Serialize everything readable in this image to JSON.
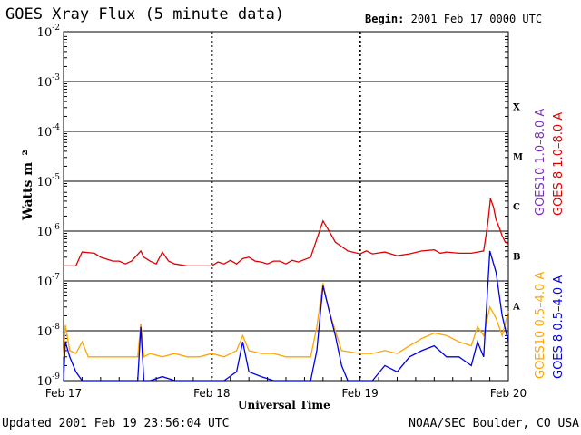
{
  "header": {
    "title": "GOES Xray Flux (5 minute data)",
    "begin_label": "Begin:",
    "begin_value": "2001 Feb 17 0000 UTC"
  },
  "footer": {
    "updated": "Updated 2001 Feb 19 23:56:04 UTC",
    "org": "NOAA/SEC Boulder, CO USA"
  },
  "chart_data": {
    "type": "line",
    "ylabel": "Watts m⁻²",
    "xlabel": "Universal Time",
    "yscale": "log",
    "ylim": [
      1e-09,
      0.01
    ],
    "xlim": [
      0,
      72
    ],
    "y_ticks": [
      {
        "exp": "-2",
        "value": 0.01
      },
      {
        "exp": "-3",
        "value": 0.001
      },
      {
        "exp": "-4",
        "value": 0.0001
      },
      {
        "exp": "-5",
        "value": 1e-05
      },
      {
        "exp": "-6",
        "value": 1e-06
      },
      {
        "exp": "-7",
        "value": 1e-07
      },
      {
        "exp": "-8",
        "value": 1e-08
      },
      {
        "exp": "-9",
        "value": 1e-09
      }
    ],
    "x_ticks": [
      {
        "label": "Feb 17",
        "hour": 0
      },
      {
        "label": "Feb 18",
        "hour": 24
      },
      {
        "label": "Feb 19",
        "hour": 48
      },
      {
        "label": "Feb 20",
        "hour": 72
      }
    ],
    "flare_classes": [
      {
        "label": "X",
        "value": 0.0001
      },
      {
        "label": "M",
        "value": 1e-05
      },
      {
        "label": "C",
        "value": 1e-06
      },
      {
        "label": "B",
        "value": 1e-07
      },
      {
        "label": "A",
        "value": 1e-08
      }
    ],
    "series": [
      {
        "name": "GOES10 1.0–8.0 A",
        "color": "#7b2fbf",
        "points": []
      },
      {
        "name": "GOES 8 1.0–8.0 A",
        "color": "#e00000",
        "points": [
          [
            0,
            2e-07
          ],
          [
            2,
            2e-07
          ],
          [
            3,
            3.8e-07
          ],
          [
            5,
            3.6e-07
          ],
          [
            6,
            3e-07
          ],
          [
            8,
            2.5e-07
          ],
          [
            9,
            2.5e-07
          ],
          [
            10,
            2.2e-07
          ],
          [
            11,
            2.5e-07
          ],
          [
            12.5,
            4e-07
          ],
          [
            13,
            3e-07
          ],
          [
            14,
            2.5e-07
          ],
          [
            15,
            2.2e-07
          ],
          [
            16,
            3.8e-07
          ],
          [
            17,
            2.5e-07
          ],
          [
            18,
            2.2e-07
          ],
          [
            20,
            2e-07
          ],
          [
            22,
            2e-07
          ],
          [
            24,
            2e-07
          ],
          [
            25,
            2.4e-07
          ],
          [
            26,
            2.2e-07
          ],
          [
            27,
            2.6e-07
          ],
          [
            28,
            2.2e-07
          ],
          [
            29,
            2.8e-07
          ],
          [
            30,
            3e-07
          ],
          [
            31,
            2.5e-07
          ],
          [
            32,
            2.4e-07
          ],
          [
            33,
            2.2e-07
          ],
          [
            34,
            2.5e-07
          ],
          [
            35,
            2.5e-07
          ],
          [
            36,
            2.2e-07
          ],
          [
            37,
            2.6e-07
          ],
          [
            38,
            2.4e-07
          ],
          [
            40,
            3e-07
          ],
          [
            42,
            1.6e-06
          ],
          [
            43,
            1e-06
          ],
          [
            44,
            6e-07
          ],
          [
            46,
            4e-07
          ],
          [
            48,
            3.5e-07
          ],
          [
            49,
            4e-07
          ],
          [
            50,
            3.5e-07
          ],
          [
            52,
            3.8e-07
          ],
          [
            54,
            3.2e-07
          ],
          [
            56,
            3.5e-07
          ],
          [
            58,
            4e-07
          ],
          [
            60,
            4.2e-07
          ],
          [
            61,
            3.6e-07
          ],
          [
            62,
            3.8e-07
          ],
          [
            64,
            3.6e-07
          ],
          [
            66,
            3.6e-07
          ],
          [
            67,
            3.8e-07
          ],
          [
            68,
            4e-07
          ],
          [
            68.7,
            1.5e-06
          ],
          [
            69.1,
            4.5e-06
          ],
          [
            69.6,
            3e-06
          ],
          [
            70,
            1.7e-06
          ],
          [
            70.5,
            1.2e-06
          ],
          [
            71,
            8e-07
          ],
          [
            71.5,
            6e-07
          ],
          [
            72,
            5.5e-07
          ]
        ]
      },
      {
        "name": "GOES10 0.5–4.0 A",
        "color": "#ffa500",
        "points": [
          [
            0,
            3e-09
          ],
          [
            0.3,
            1.3e-08
          ],
          [
            1,
            4e-09
          ],
          [
            2,
            3.5e-09
          ],
          [
            3,
            6e-09
          ],
          [
            4,
            3e-09
          ],
          [
            6,
            3e-09
          ],
          [
            8,
            3e-09
          ],
          [
            10,
            3e-09
          ],
          [
            12,
            3e-09
          ],
          [
            12.5,
            1.4e-08
          ],
          [
            13,
            3e-09
          ],
          [
            14,
            3.5e-09
          ],
          [
            16,
            3e-09
          ],
          [
            18,
            3.5e-09
          ],
          [
            20,
            3e-09
          ],
          [
            22,
            3e-09
          ],
          [
            24,
            3.5e-09
          ],
          [
            26,
            3e-09
          ],
          [
            28,
            4e-09
          ],
          [
            29,
            8e-09
          ],
          [
            30,
            4e-09
          ],
          [
            32,
            3.5e-09
          ],
          [
            34,
            3.5e-09
          ],
          [
            36,
            3e-09
          ],
          [
            38,
            3e-09
          ],
          [
            40,
            3e-09
          ],
          [
            41,
            1.2e-08
          ],
          [
            42,
            9e-08
          ],
          [
            43,
            2.5e-08
          ],
          [
            44,
            1e-08
          ],
          [
            45,
            4e-09
          ],
          [
            48,
            3.5e-09
          ],
          [
            50,
            3.5e-09
          ],
          [
            52,
            4e-09
          ],
          [
            54,
            3.5e-09
          ],
          [
            56,
            5e-09
          ],
          [
            58,
            7e-09
          ],
          [
            60,
            9e-09
          ],
          [
            62,
            8e-09
          ],
          [
            64,
            6e-09
          ],
          [
            66,
            5e-09
          ],
          [
            67,
            1.2e-08
          ],
          [
            68,
            8e-09
          ],
          [
            69,
            3e-08
          ],
          [
            70,
            1.8e-08
          ],
          [
            71,
            8e-09
          ],
          [
            72,
            2.5e-08
          ]
        ]
      },
      {
        "name": "GOES 8 0.5–4.0 A",
        "color": "#0000e6",
        "points": [
          [
            0,
            1e-09
          ],
          [
            0.3,
            6e-09
          ],
          [
            1,
            3e-09
          ],
          [
            2,
            1.5e-09
          ],
          [
            3,
            1e-09
          ],
          [
            5,
            1e-09
          ],
          [
            8,
            1e-09
          ],
          [
            10,
            1e-09
          ],
          [
            12,
            1e-09
          ],
          [
            12.5,
            1.2e-08
          ],
          [
            13,
            1e-09
          ],
          [
            14,
            1e-09
          ],
          [
            16,
            1.2e-09
          ],
          [
            18,
            1e-09
          ],
          [
            20,
            1e-09
          ],
          [
            22,
            1e-09
          ],
          [
            24,
            1e-09
          ],
          [
            26,
            1e-09
          ],
          [
            28,
            1.5e-09
          ],
          [
            29,
            6e-09
          ],
          [
            30,
            1.5e-09
          ],
          [
            32,
            1.2e-09
          ],
          [
            34,
            1e-09
          ],
          [
            36,
            1e-09
          ],
          [
            38,
            1e-09
          ],
          [
            40,
            1e-09
          ],
          [
            41,
            4e-09
          ],
          [
            42,
            8e-08
          ],
          [
            43,
            2.5e-08
          ],
          [
            44,
            8e-09
          ],
          [
            45,
            2e-09
          ],
          [
            46,
            1e-09
          ],
          [
            48,
            1e-09
          ],
          [
            50,
            1e-09
          ],
          [
            52,
            2e-09
          ],
          [
            54,
            1.5e-09
          ],
          [
            56,
            3e-09
          ],
          [
            58,
            4e-09
          ],
          [
            60,
            5e-09
          ],
          [
            62,
            3e-09
          ],
          [
            64,
            3e-09
          ],
          [
            66,
            2e-09
          ],
          [
            67,
            6e-09
          ],
          [
            68,
            3e-09
          ],
          [
            69,
            4e-07
          ],
          [
            70,
            1.5e-07
          ],
          [
            71,
            2e-08
          ],
          [
            72,
            6e-09
          ]
        ]
      }
    ]
  }
}
